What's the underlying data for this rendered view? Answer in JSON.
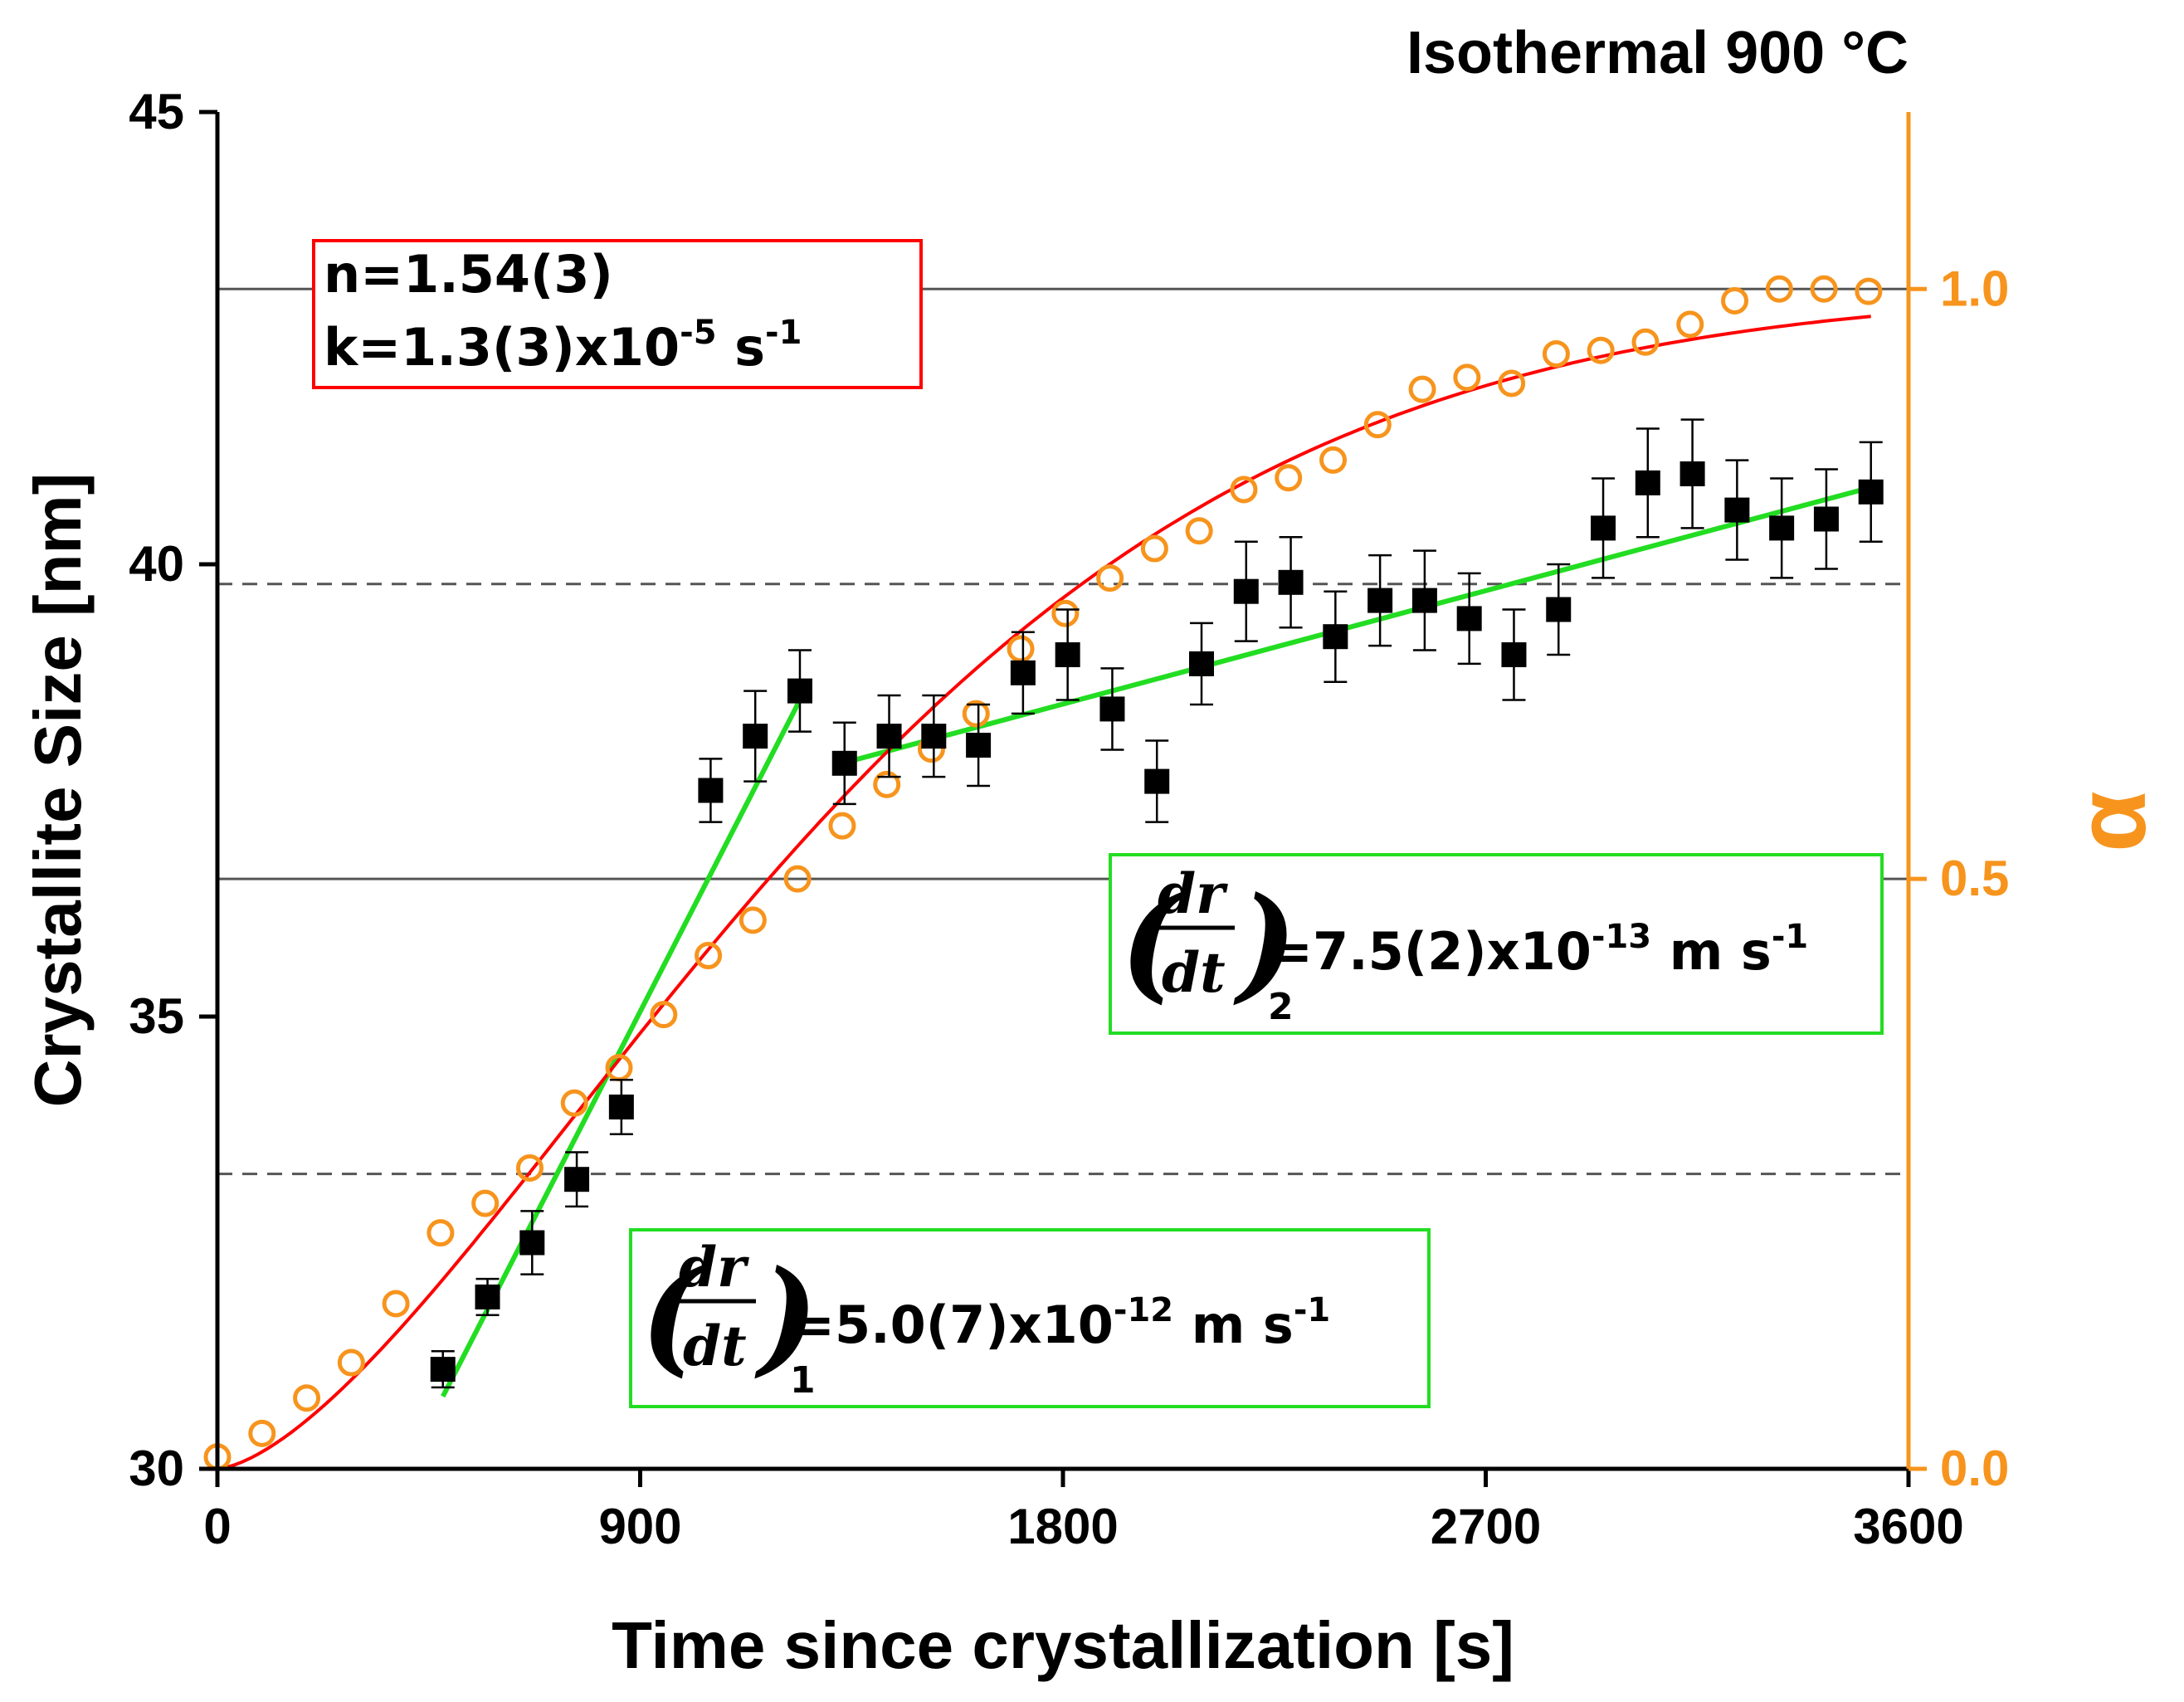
{
  "chart_data": {
    "type": "scatter",
    "title": "Isothermal 900 °C",
    "xlabel": "Time since crystallization [s]",
    "ylabel": "Crystallite Size [nm]",
    "y2label": "α",
    "xlim": [
      0,
      3600
    ],
    "ylim": [
      30,
      45
    ],
    "y2lim": [
      0,
      1.15
    ],
    "xticks": [
      "0",
      "900",
      "1800",
      "2700",
      "3600"
    ],
    "yticks": [
      "30",
      "35",
      "40",
      "45"
    ],
    "y2ticks": [
      "0.0",
      "0.5",
      "1.0"
    ],
    "colors": {
      "size": "#000000",
      "alpha": "#f7941d",
      "fit": "#ff0000",
      "linear": "#22dd22",
      "ref_line": "#555555"
    },
    "reference_lines": [
      {
        "axis": "y2",
        "value": 1.0,
        "style": "solid"
      },
      {
        "axis": "y2",
        "value": 0.75,
        "style": "dashed"
      },
      {
        "axis": "y2",
        "value": 0.5,
        "style": "solid"
      },
      {
        "axis": "y2",
        "value": 0.25,
        "style": "dashed"
      }
    ],
    "series": [
      {
        "marker": "filled-square",
        "axis": "y",
        "x": [
          480,
          575,
          670,
          765,
          860,
          1050,
          1145,
          1240,
          1335,
          1430,
          1525,
          1620,
          1715,
          1810,
          1905,
          2000,
          2095,
          2190,
          2285,
          2380,
          2475,
          2570,
          2665,
          2760,
          2855,
          2950,
          3045,
          3140,
          3235,
          3330,
          3425,
          3520
        ],
        "values": [
          31.1,
          31.9,
          32.5,
          33.2,
          34.0,
          37.5,
          38.1,
          38.6,
          37.8,
          38.1,
          38.1,
          38.0,
          38.8,
          39.0,
          38.4,
          37.6,
          38.9,
          39.7,
          39.8,
          39.2,
          39.6,
          39.6,
          39.4,
          39.0,
          39.5,
          40.4,
          40.9,
          41.0,
          40.6,
          40.4,
          40.5,
          40.8
        ],
        "errors": [
          0.2,
          0.2,
          0.35,
          0.3,
          0.3,
          0.35,
          0.5,
          0.45,
          0.45,
          0.45,
          0.45,
          0.45,
          0.45,
          0.5,
          0.45,
          0.45,
          0.45,
          0.55,
          0.5,
          0.5,
          0.5,
          0.55,
          0.5,
          0.5,
          0.5,
          0.55,
          0.6,
          0.6,
          0.55,
          0.55,
          0.55,
          0.55
        ]
      },
      {
        "marker": "open-circle",
        "axis": "y2",
        "x": [
          0,
          95,
          190,
          285,
          380,
          475,
          570,
          665,
          760,
          855,
          950,
          1045,
          1140,
          1235,
          1330,
          1425,
          1520,
          1615,
          1710,
          1805,
          1900,
          1995,
          2090,
          2185,
          2280,
          2375,
          2470,
          2565,
          2660,
          2755,
          2850,
          2945,
          3040,
          3135,
          3230,
          3325,
          3420,
          3515
        ],
        "values": [
          0.01,
          0.03,
          0.06,
          0.09,
          0.14,
          0.2,
          0.225,
          0.255,
          0.31,
          0.34,
          0.385,
          0.435,
          0.465,
          0.5,
          0.545,
          0.58,
          0.61,
          0.64,
          0.695,
          0.725,
          0.755,
          0.78,
          0.795,
          0.83,
          0.84,
          0.855,
          0.885,
          0.915,
          0.925,
          0.92,
          0.945,
          0.948,
          0.955,
          0.97,
          0.99,
          1.0,
          1.0,
          0.998
        ]
      }
    ],
    "fit_curve": {
      "type": "avrami",
      "axis": "y2",
      "n": 1.54,
      "k": 1.3e-05,
      "x_range": [
        0,
        3520
      ]
    },
    "linear_fits": [
      {
        "x": [
          480,
          1240
        ],
        "values": [
          30.8,
          38.5
        ]
      },
      {
        "x": [
          1330,
          3520
        ],
        "values": [
          37.8,
          40.85
        ]
      }
    ],
    "annotations": {
      "avrami": {
        "line1": "n=1.54(3)",
        "line2_base": "k=1.3(3)x10",
        "line2_exp": "-5",
        "line2_unit": " s",
        "line2_unit_exp": "-1"
      },
      "rate2": {
        "numerator": "dr",
        "denominator": "dt",
        "subscript": "2",
        "base": "=7.5(2)x10",
        "exp": "-13",
        "unit": " m s",
        "unit_exp": "-1"
      },
      "rate1": {
        "numerator": "dr",
        "denominator": "dt",
        "subscript": "1",
        "base": "=5.0(7)x10",
        "exp": "-12",
        "unit": " m s",
        "unit_exp": "-1"
      }
    }
  }
}
